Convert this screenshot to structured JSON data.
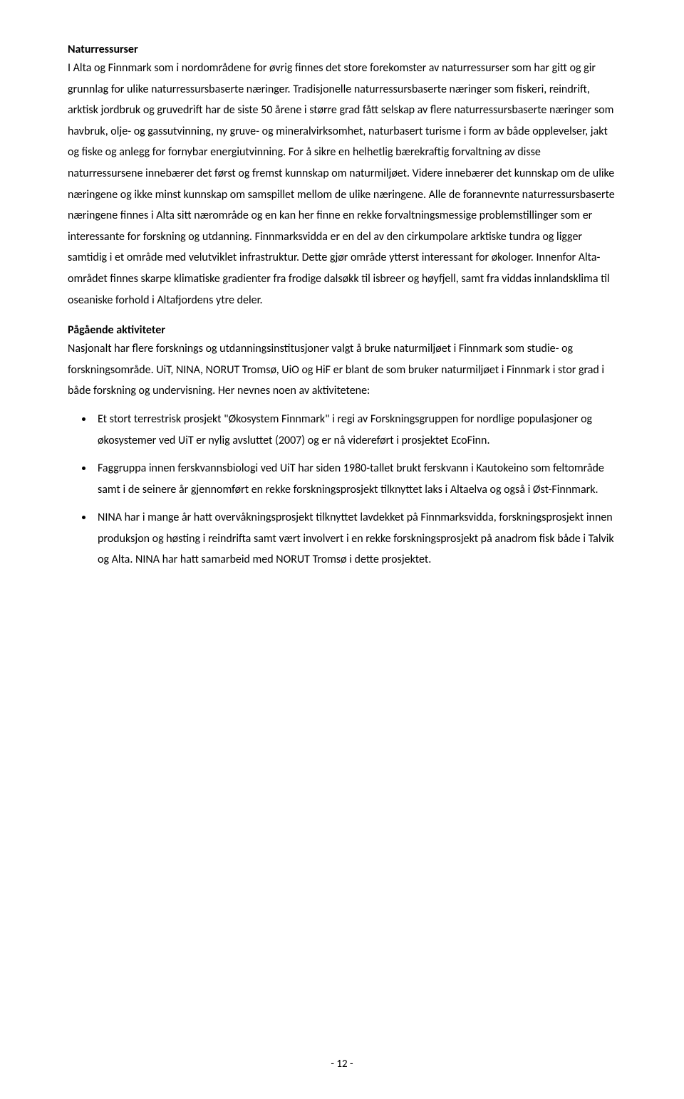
{
  "section1": {
    "heading": "Naturressurser",
    "paragraph1": "I Alta og Finnmark som i nordområdene for øvrig finnes det store forekomster av naturressurser som har gitt og gir grunnlag for ulike naturressursbaserte næringer. Tradisjonelle naturressursbaserte næringer som fiskeri, reindrift, arktisk jordbruk og gruvedrift har de siste 50 årene i større grad fått selskap av flere naturressursbaserte næringer som havbruk, olje- og gassutvinning, ny gruve- og mineralvirksomhet, naturbasert turisme i form av både opplevelser, jakt og fiske og anlegg for fornybar energiutvinning. For å sikre en helhetlig bærekraftig forvaltning av disse naturressursene innebærer det først og fremst kunnskap om naturmiljøet. Videre innebærer det kunnskap om de ulike næringene og ikke minst kunnskap om samspillet mellom de ulike næringene. Alle de forannevnte naturressursbaserte næringene finnes i Alta sitt nærområde og en kan her finne en rekke forvaltningsmessige problemstillinger som er interessante for forskning og utdanning. Finnmarksvidda er en del av den cirkumpolare arktiske tundra og ligger samtidig i et område med velutviklet infrastruktur. Dette gjør område ytterst interessant for økologer. Innenfor Alta-området finnes skarpe klimatiske gradienter fra frodige dalsøkk til isbreer og høyfjell, samt fra viddas innlandsklima til oseaniske forhold i Altafjordens ytre deler."
  },
  "section2": {
    "heading": "Pågående aktiviteter",
    "paragraph1": "Nasjonalt har flere forsknings og utdanningsinstitusjoner valgt å bruke naturmiljøet i Finnmark som studie- og forskningsområde. UiT, NINA, NORUT Tromsø, UiO og HiF er blant de som bruker naturmiljøet i Finnmark i stor grad i både forskning og undervisning. Her nevnes noen av aktivitetene:",
    "bullets": [
      "Et stort terrestrisk prosjekt \"Økosystem Finnmark\" i regi av Forskningsgruppen for nordlige populasjoner og økosystemer ved UiT er nylig avsluttet (2007) og er nå videreført i prosjektet EcoFinn.",
      "Faggruppa innen ferskvannsbiologi ved UiT har siden 1980-tallet brukt ferskvann i Kautokeino som feltområde samt i de seinere år gjennomført en rekke forskningsprosjekt tilknyttet laks i Altaelva og også i Øst-Finnmark.",
      "NINA har i mange år hatt overvåkningsprosjekt tilknyttet lavdekket på Finnmarksvidda, forskningsprosjekt innen produksjon og høsting i reindrifta samt vært involvert i en rekke forskningsprosjekt på anadrom fisk både i Talvik og Alta. NINA har hatt samarbeid med NORUT Tromsø i dette prosjektet."
    ]
  },
  "pageNumber": "- 12 -"
}
